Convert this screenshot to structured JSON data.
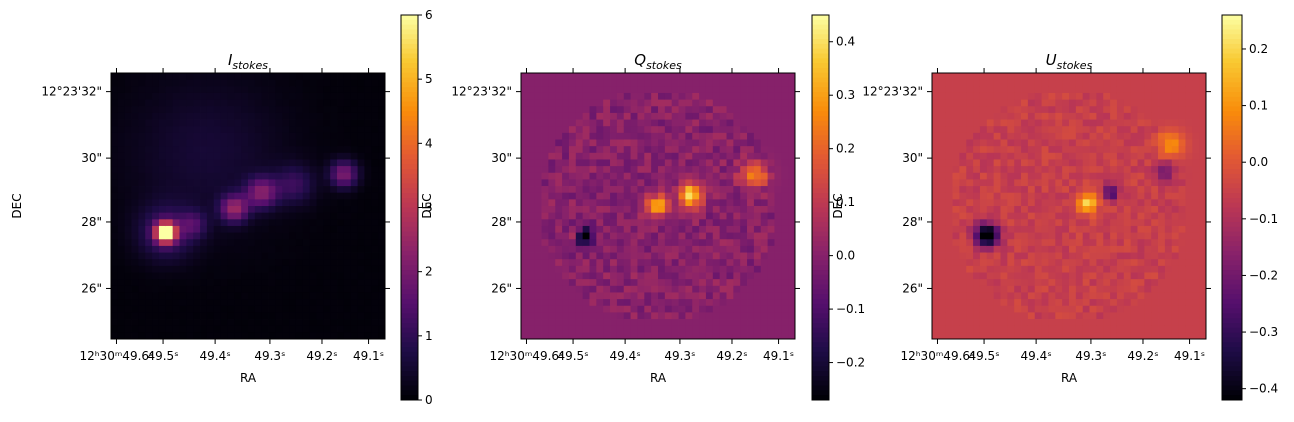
{
  "chart_data": [
    {
      "type": "heatmap",
      "title": "I",
      "title_subscript": "stokes",
      "xlabel": "RA",
      "ylabel": "DEC",
      "xticks": [
        "12ʰ30ᵐ49.6ˢ",
        "49.5ˢ",
        "49.4ˢ",
        "49.3ˢ",
        "49.2ˢ",
        "49.1ˢ"
      ],
      "yticks": [
        "12°23'32\"",
        "30\"",
        "28\"",
        "26\""
      ],
      "colormap": "inferno",
      "colorbar": {
        "range": [
          0,
          6
        ],
        "ticks": [
          "0",
          "1",
          "2",
          "3",
          "4",
          "5",
          "6"
        ]
      },
      "features": [
        {
          "x": 0.2,
          "y": 0.6,
          "amp": 6.0,
          "sigma": 0.025
        },
        {
          "x": 0.2,
          "y": 0.6,
          "amp": 1.2,
          "sigma": 0.07
        },
        {
          "x": 0.3,
          "y": 0.57,
          "amp": 1.0,
          "sigma": 0.035
        },
        {
          "x": 0.45,
          "y": 0.51,
          "amp": 2.3,
          "sigma": 0.035
        },
        {
          "x": 0.55,
          "y": 0.45,
          "amp": 2.0,
          "sigma": 0.04
        },
        {
          "x": 0.67,
          "y": 0.42,
          "amp": 1.0,
          "sigma": 0.05
        },
        {
          "x": 0.85,
          "y": 0.38,
          "amp": 2.0,
          "sigma": 0.035
        },
        {
          "x": 0.35,
          "y": 0.3,
          "amp": 0.5,
          "sigma": 0.2
        }
      ],
      "background": 0.05
    },
    {
      "type": "heatmap",
      "title": "Q",
      "title_subscript": "stokes",
      "xlabel": "RA",
      "ylabel": "DEC",
      "xticks": [
        "12ʰ30ᵐ49.6ˢ",
        "49.5ˢ",
        "49.4ˢ",
        "49.3ˢ",
        "49.2ˢ",
        "49.1ˢ"
      ],
      "yticks": [
        "12°23'32\"",
        "30\"",
        "28\"",
        "26\""
      ],
      "colormap": "inferno",
      "colorbar": {
        "range": [
          -0.27,
          0.45
        ],
        "ticks": [
          "−0.2",
          "−0.1",
          "0.0",
          "0.1",
          "0.2",
          "0.3",
          "0.4"
        ]
      },
      "features": [
        {
          "x": 0.5,
          "y": 0.5,
          "amp": 0.3,
          "sigma": 0.03
        },
        {
          "x": 0.62,
          "y": 0.46,
          "amp": 0.4,
          "sigma": 0.03
        },
        {
          "x": 0.85,
          "y": 0.38,
          "amp": 0.28,
          "sigma": 0.035
        },
        {
          "x": 0.23,
          "y": 0.61,
          "amp": -0.3,
          "sigma": 0.025
        },
        {
          "x": 0.2,
          "y": 0.6,
          "amp": 0.25,
          "sigma": 0.012
        }
      ],
      "background": 0.0,
      "noise": 0.05
    },
    {
      "type": "heatmap",
      "title": "U",
      "title_subscript": "stokes",
      "xlabel": "RA",
      "ylabel": "DEC",
      "xticks": [
        "12ʰ30ᵐ49.6ˢ",
        "49.5ˢ",
        "49.4ˢ",
        "49.3ˢ",
        "49.2ˢ",
        "49.1ˢ"
      ],
      "yticks": [
        "12°23'32\"",
        "30\"",
        "28\"",
        "26\""
      ],
      "colormap": "inferno",
      "colorbar": {
        "range": [
          -0.42,
          0.26
        ],
        "ticks": [
          "−0.4",
          "−0.3",
          "−0.2",
          "−0.1",
          "0.0",
          "0.1",
          "0.2"
        ]
      },
      "features": [
        {
          "x": 0.57,
          "y": 0.49,
          "amp": 0.26,
          "sigma": 0.025
        },
        {
          "x": 0.65,
          "y": 0.45,
          "amp": -0.25,
          "sigma": 0.02
        },
        {
          "x": 0.2,
          "y": 0.61,
          "amp": -0.45,
          "sigma": 0.03
        },
        {
          "x": 0.87,
          "y": 0.27,
          "amp": 0.16,
          "sigma": 0.035
        },
        {
          "x": 0.85,
          "y": 0.37,
          "amp": -0.12,
          "sigma": 0.03
        }
      ],
      "background": -0.055,
      "noise": 0.03
    }
  ]
}
